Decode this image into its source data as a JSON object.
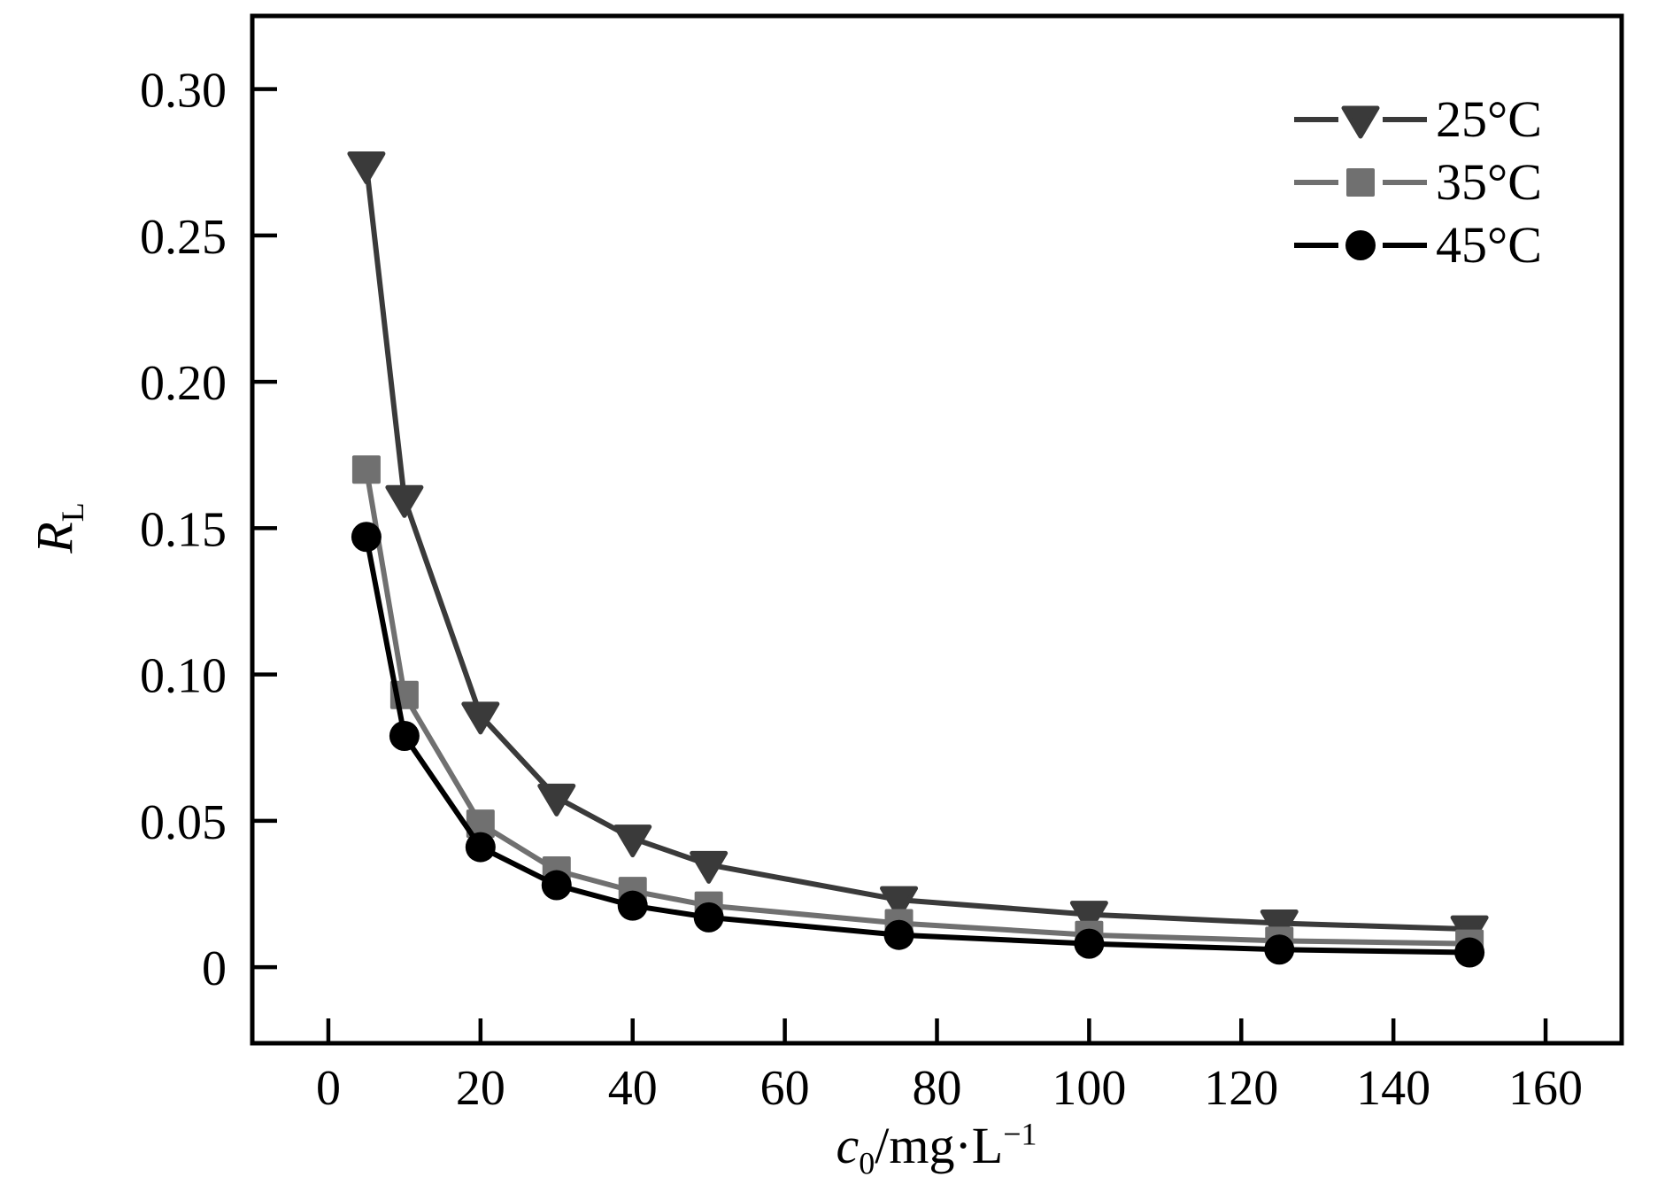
{
  "figure": {
    "background": "#ffffff",
    "text_color": "#000000"
  },
  "chart_data": {
    "type": "line",
    "title": "",
    "xlabel": {
      "var": "c",
      "sub": "0",
      "rest": "/mg·L",
      "sup": "−1"
    },
    "ylabel": {
      "var": "R",
      "sub": "L"
    },
    "xlim": [
      -10,
      170
    ],
    "ylim": [
      -0.026,
      0.325
    ],
    "x_ticks": [
      0,
      20,
      40,
      60,
      80,
      100,
      120,
      140,
      160
    ],
    "x_tick_labels": [
      "0",
      "20",
      "40",
      "60",
      "80",
      "100",
      "120",
      "140",
      "160"
    ],
    "y_ticks": [
      0,
      0.05,
      0.1,
      0.15,
      0.2,
      0.25,
      0.3
    ],
    "y_tick_labels": [
      "0",
      "0.05",
      "0.10",
      "0.15",
      "0.20",
      "0.25",
      "0.30"
    ],
    "grid": false,
    "legend_position": "upper-right-inside",
    "x": [
      5,
      10,
      20,
      30,
      40,
      50,
      75,
      100,
      125,
      150
    ],
    "series": [
      {
        "name": "25°C",
        "marker": "triangle-down",
        "color": "#3a3a3a",
        "values": [
          0.274,
          0.16,
          0.086,
          0.058,
          0.044,
          0.035,
          0.023,
          0.018,
          0.015,
          0.013
        ]
      },
      {
        "name": "35°C",
        "marker": "square",
        "color": "#707070",
        "values": [
          0.17,
          0.093,
          0.049,
          0.033,
          0.026,
          0.021,
          0.015,
          0.011,
          0.009,
          0.008
        ]
      },
      {
        "name": "45°C",
        "marker": "circle",
        "color": "#000000",
        "values": [
          0.147,
          0.079,
          0.041,
          0.028,
          0.021,
          0.017,
          0.011,
          0.008,
          0.006,
          0.005
        ]
      }
    ]
  }
}
